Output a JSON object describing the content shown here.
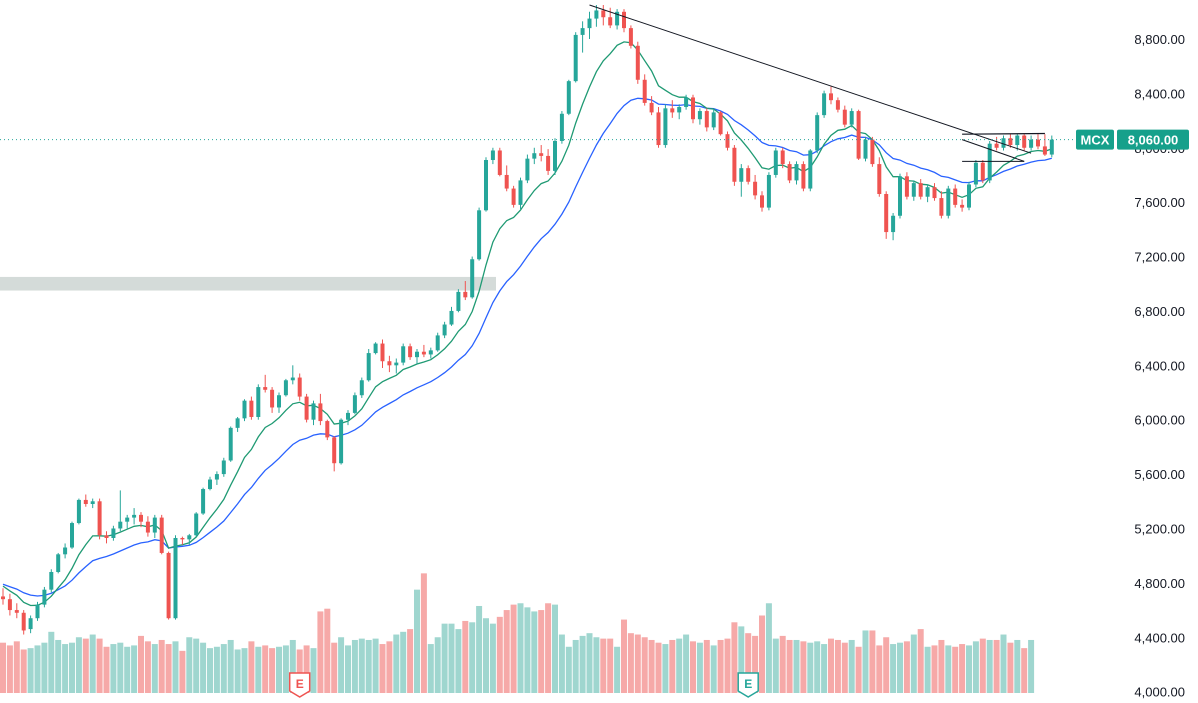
{
  "colors": {
    "up": "#26a69a",
    "down": "#ef5350",
    "vol_up": "#9fd6cf",
    "vol_down": "#f6a9a8",
    "ema_fast": "#1f9a73",
    "ema_slow": "#2962ff",
    "trendline": "#131722",
    "last_price_bg": "#16a08b",
    "zone": "#c9d2cf"
  },
  "chart_data": {
    "type": "candlestick",
    "symbol": "MCX",
    "last_price_label": "8,060.00",
    "y_ticks": [
      "8,800.00",
      "8,400.00",
      "8,000.00",
      "7,600.00",
      "7,200.00",
      "6,800.00",
      "6,400.00",
      "6,000.00",
      "5,600.00",
      "5,200.00",
      "4,800.00",
      "4,400.00",
      "4,000.00"
    ],
    "ylim": [
      3990,
      9050
    ],
    "last_price": 8060,
    "candles": [
      [
        4700,
        4760,
        4640,
        4680
      ],
      [
        4680,
        4720,
        4560,
        4600
      ],
      [
        4600,
        4650,
        4540,
        4580
      ],
      [
        4580,
        4600,
        4420,
        4450
      ],
      [
        4460,
        4560,
        4430,
        4540
      ],
      [
        4540,
        4660,
        4520,
        4640
      ],
      [
        4640,
        4770,
        4620,
        4750
      ],
      [
        4750,
        4900,
        4730,
        4880
      ],
      [
        4880,
        5020,
        4870,
        5010
      ],
      [
        5010,
        5090,
        4980,
        5060
      ],
      [
        5060,
        5250,
        5050,
        5240
      ],
      [
        5240,
        5420,
        5230,
        5410
      ],
      [
        5410,
        5450,
        5360,
        5380
      ],
      [
        5380,
        5420,
        5350,
        5400
      ],
      [
        5400,
        5420,
        5120,
        5150
      ],
      [
        5150,
        5180,
        5090,
        5130
      ],
      [
        5130,
        5220,
        5110,
        5200
      ],
      [
        5200,
        5480,
        5180,
        5250
      ],
      [
        5250,
        5300,
        5200,
        5280
      ],
      [
        5280,
        5350,
        5230,
        5300
      ],
      [
        5300,
        5320,
        5210,
        5250
      ],
      [
        5250,
        5290,
        5140,
        5170
      ],
      [
        5170,
        5300,
        5130,
        5280
      ],
      [
        5280,
        5300,
        5010,
        5020
      ],
      [
        5020,
        5030,
        4530,
        4540
      ],
      [
        4540,
        5150,
        4530,
        5130
      ],
      [
        5130,
        5140,
        5080,
        5120
      ],
      [
        5120,
        5160,
        5080,
        5150
      ],
      [
        5150,
        5320,
        5140,
        5310
      ],
      [
        5310,
        5500,
        5300,
        5490
      ],
      [
        5490,
        5580,
        5480,
        5560
      ],
      [
        5560,
        5620,
        5520,
        5600
      ],
      [
        5600,
        5720,
        5580,
        5700
      ],
      [
        5700,
        5950,
        5690,
        5940
      ],
      [
        5940,
        6020,
        5910,
        6010
      ],
      [
        6010,
        6150,
        5990,
        6140
      ],
      [
        6140,
        6170,
        6000,
        6020
      ],
      [
        6020,
        6260,
        6000,
        6240
      ],
      [
        6240,
        6330,
        6200,
        6220
      ],
      [
        6220,
        6240,
        6050,
        6090
      ],
      [
        6090,
        6200,
        6050,
        6180
      ],
      [
        6180,
        6300,
        6170,
        6290
      ],
      [
        6290,
        6400,
        6260,
        6310
      ],
      [
        6310,
        6340,
        6140,
        6170
      ],
      [
        6170,
        6190,
        5980,
        6000
      ],
      [
        6000,
        6140,
        5960,
        6120
      ],
      [
        6120,
        6190,
        5960,
        5990
      ],
      [
        5990,
        6000,
        5850,
        5870
      ],
      [
        5870,
        5880,
        5620,
        5680
      ],
      [
        5680,
        6010,
        5670,
        6000
      ],
      [
        6000,
        6070,
        5960,
        6050
      ],
      [
        6050,
        6200,
        6040,
        6180
      ],
      [
        6180,
        6310,
        6160,
        6290
      ],
      [
        6290,
        6520,
        6280,
        6490
      ],
      [
        6490,
        6570,
        6480,
        6560
      ],
      [
        6560,
        6590,
        6380,
        6430
      ],
      [
        6430,
        6470,
        6350,
        6400
      ],
      [
        6400,
        6450,
        6340,
        6420
      ],
      [
        6420,
        6560,
        6400,
        6540
      ],
      [
        6540,
        6560,
        6440,
        6460
      ],
      [
        6460,
        6520,
        6410,
        6500
      ],
      [
        6500,
        6550,
        6460,
        6480
      ],
      [
        6480,
        6530,
        6450,
        6510
      ],
      [
        6510,
        6640,
        6500,
        6620
      ],
      [
        6620,
        6720,
        6600,
        6700
      ],
      [
        6700,
        6830,
        6690,
        6800
      ],
      [
        6800,
        6960,
        6790,
        6940
      ],
      [
        6940,
        7020,
        6880,
        6900
      ],
      [
        6900,
        7200,
        6890,
        7180
      ],
      [
        7180,
        7560,
        7170,
        7540
      ],
      [
        7540,
        7930,
        7530,
        7910
      ],
      [
        7910,
        8000,
        7880,
        7980
      ],
      [
        7980,
        8000,
        7790,
        7800
      ],
      [
        7800,
        7870,
        7680,
        7700
      ],
      [
        7700,
        7720,
        7560,
        7580
      ],
      [
        7580,
        7780,
        7550,
        7760
      ],
      [
        7760,
        7950,
        7740,
        7920
      ],
      [
        7920,
        8000,
        7880,
        7960
      ],
      [
        7960,
        8020,
        7900,
        7940
      ],
      [
        7940,
        7990,
        7800,
        7830
      ],
      [
        7830,
        8070,
        7800,
        8050
      ],
      [
        8050,
        8270,
        8030,
        8250
      ],
      [
        8250,
        8500,
        8240,
        8490
      ],
      [
        8490,
        8850,
        8480,
        8830
      ],
      [
        8830,
        8930,
        8700,
        8880
      ],
      [
        8880,
        9000,
        8800,
        8950
      ],
      [
        8950,
        9050,
        8890,
        9010
      ],
      [
        9010,
        9050,
        8900,
        8960
      ],
      [
        8960,
        9030,
        8880,
        8900
      ],
      [
        8900,
        9020,
        8870,
        9000
      ],
      [
        9000,
        9020,
        8850,
        8880
      ],
      [
        8880,
        8900,
        8730,
        8750
      ],
      [
        8750,
        8780,
        8470,
        8500
      ],
      [
        8500,
        8540,
        8310,
        8330
      ],
      [
        8330,
        8380,
        8240,
        8260
      ],
      [
        8260,
        8300,
        8000,
        8020
      ],
      [
        8020,
        8320,
        8000,
        8290
      ],
      [
        8290,
        8350,
        8220,
        8260
      ],
      [
        8260,
        8320,
        8210,
        8300
      ],
      [
        8300,
        8390,
        8280,
        8370
      ],
      [
        8370,
        8390,
        8180,
        8210
      ],
      [
        8210,
        8290,
        8170,
        8270
      ],
      [
        8270,
        8290,
        8120,
        8150
      ],
      [
        8150,
        8280,
        8130,
        8260
      ],
      [
        8260,
        8270,
        8090,
        8100
      ],
      [
        8100,
        8120,
        7980,
        8000
      ],
      [
        8000,
        8020,
        7720,
        7750
      ],
      [
        7750,
        7880,
        7640,
        7850
      ],
      [
        7850,
        7870,
        7730,
        7750
      ],
      [
        7750,
        7800,
        7620,
        7650
      ],
      [
        7650,
        7680,
        7530,
        7560
      ],
      [
        7560,
        7820,
        7540,
        7800
      ],
      [
        7800,
        8000,
        7780,
        7980
      ],
      [
        7980,
        8000,
        7850,
        7880
      ],
      [
        7880,
        7900,
        7740,
        7760
      ],
      [
        7760,
        7900,
        7730,
        7880
      ],
      [
        7880,
        7900,
        7680,
        7700
      ],
      [
        7700,
        7990,
        7680,
        7980
      ],
      [
        7980,
        8260,
        7960,
        8240
      ],
      [
        8240,
        8420,
        8220,
        8400
      ],
      [
        8400,
        8450,
        8320,
        8350
      ],
      [
        8350,
        8370,
        8260,
        8280
      ],
      [
        8280,
        8310,
        8150,
        8170
      ],
      [
        8170,
        8290,
        8150,
        8270
      ],
      [
        8270,
        8280,
        7910,
        7920
      ],
      [
        7920,
        8080,
        7900,
        8060
      ],
      [
        8060,
        8080,
        7860,
        7880
      ],
      [
        7880,
        7930,
        7640,
        7660
      ],
      [
        7660,
        7680,
        7330,
        7380
      ],
      [
        7380,
        7520,
        7320,
        7500
      ],
      [
        7500,
        7810,
        7480,
        7790
      ],
      [
        7790,
        7820,
        7620,
        7640
      ],
      [
        7640,
        7760,
        7610,
        7740
      ],
      [
        7740,
        7770,
        7620,
        7640
      ],
      [
        7640,
        7730,
        7600,
        7710
      ],
      [
        7710,
        7740,
        7610,
        7630
      ],
      [
        7630,
        7680,
        7480,
        7500
      ],
      [
        7500,
        7720,
        7480,
        7700
      ],
      [
        7700,
        7730,
        7560,
        7580
      ],
      [
        7580,
        7620,
        7530,
        7560
      ],
      [
        7560,
        7750,
        7540,
        7730
      ],
      [
        7730,
        7910,
        7710,
        7890
      ],
      [
        7890,
        7910,
        7740,
        7760
      ],
      [
        7760,
        8050,
        7740,
        8030
      ],
      [
        8030,
        8080,
        7980,
        8000
      ],
      [
        8000,
        8090,
        7980,
        8070
      ],
      [
        8070,
        8100,
        8000,
        8020
      ],
      [
        8020,
        8100,
        7980,
        8090
      ],
      [
        8090,
        8100,
        7980,
        8000
      ],
      [
        8000,
        8090,
        7980,
        8060
      ],
      [
        8060,
        8100,
        7990,
        8010
      ],
      [
        8010,
        8100,
        7940,
        7950
      ],
      [
        7950,
        8090,
        7930,
        8060
      ]
    ],
    "volumes": [
      4360,
      4340,
      4370,
      4310,
      4320,
      4340,
      4360,
      4440,
      4380,
      4350,
      4360,
      4400,
      4390,
      4420,
      4390,
      4330,
      4350,
      4360,
      4330,
      4340,
      4410,
      4370,
      4350,
      4380,
      4350,
      4370,
      4300,
      4400,
      4390,
      4360,
      4320,
      4330,
      4350,
      4380,
      4310,
      4320,
      4370,
      4330,
      4340,
      4320,
      4330,
      4340,
      4380,
      4310,
      4340,
      4320,
      4590,
      4610,
      4360,
      4400,
      4340,
      4380,
      4390,
      4380,
      4390,
      4350,
      4370,
      4420,
      4440,
      4460,
      4750,
      4870,
      4350,
      4400,
      4500,
      4500,
      4460,
      4520,
      4510,
      4630,
      4540,
      4500,
      4550,
      4600,
      4640,
      4650,
      4620,
      4590,
      4600,
      4650,
      4640,
      4420,
      4330,
      4380,
      4410,
      4430,
      4400,
      4390,
      4390,
      4330,
      4530,
      4430,
      4420,
      4400,
      4380,
      4360,
      4350,
      4380,
      4390,
      4420,
      4370,
      4360,
      4380,
      4340,
      4380,
      4390,
      4510,
      4480,
      4430,
      4410,
      4560,
      4650,
      4390,
      4410,
      4380,
      4380,
      4370,
      4360,
      4370,
      4350,
      4390,
      4380,
      4360,
      4380,
      4330,
      4450,
      4450,
      4340,
      4400,
      4350,
      4360,
      4370,
      4420,
      4460,
      4330,
      4340,
      4380,
      4340,
      4330,
      4350,
      4340,
      4370,
      4390,
      4380,
      4380,
      4420,
      4360,
      4380,
      4320,
      4380
    ],
    "volume_up_flags": "mixed",
    "horizontal_zone": [
      6950,
      7050
    ],
    "earnings_markers": [
      "E",
      "E"
    ]
  }
}
